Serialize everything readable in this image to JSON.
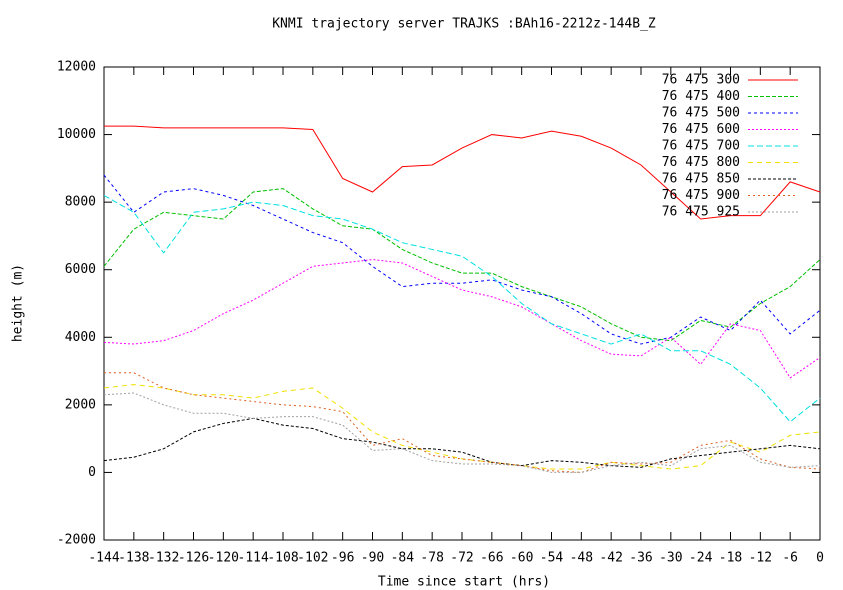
{
  "chart_data": {
    "type": "line",
    "title": "KNMI trajectory server TRAJKS :BAh16-2212z-144B_Z",
    "xlabel": "Time since start (hrs)",
    "ylabel": "height (m)",
    "x": [
      -144,
      -138,
      -132,
      -126,
      -120,
      -114,
      -108,
      -102,
      -96,
      -90,
      -84,
      -78,
      -72,
      -66,
      -60,
      -54,
      -48,
      -42,
      -36,
      -30,
      -24,
      -18,
      -12,
      -6,
      0
    ],
    "xlim": [
      -144,
      0
    ],
    "xticks": [
      -144,
      -138,
      -132,
      -126,
      -120,
      -114,
      -108,
      -102,
      -96,
      -90,
      -84,
      -78,
      -72,
      -66,
      -60,
      -54,
      -48,
      -42,
      -36,
      -30,
      -24,
      -18,
      -12,
      -6,
      0
    ],
    "ylim": [
      -2000,
      12000
    ],
    "yticks": [
      -2000,
      0,
      2000,
      4000,
      6000,
      8000,
      10000,
      12000
    ],
    "grid": false,
    "legend": "top-right",
    "series": [
      {
        "name": "76 475 300",
        "color": "#ff0000",
        "values": [
          10250,
          10250,
          10200,
          10200,
          10200,
          10200,
          10200,
          10150,
          8700,
          8300,
          9050,
          9100,
          9600,
          10000,
          9900,
          10100,
          9950,
          9600,
          9100,
          8300,
          7500,
          7600,
          7600,
          8600,
          8300
        ]
      },
      {
        "name": "76 475 400",
        "color": "#00c000",
        "values": [
          6100,
          7200,
          7700,
          7600,
          7500,
          8300,
          8400,
          7800,
          7300,
          7200,
          6600,
          6200,
          5900,
          5900,
          5500,
          5200,
          4900,
          4400,
          4000,
          3900,
          4500,
          4300,
          5000,
          5500,
          6300
        ]
      },
      {
        "name": "76 475 500",
        "color": "#0000ff",
        "values": [
          8800,
          7700,
          8300,
          8400,
          8200,
          7900,
          7500,
          7100,
          6800,
          6100,
          5500,
          5600,
          5600,
          5700,
          5400,
          5200,
          4700,
          4100,
          3800,
          4000,
          4600,
          4200,
          5100,
          4100,
          4800
        ]
      },
      {
        "name": "76 475 600",
        "color": "#ff00ff",
        "values": [
          3850,
          3800,
          3900,
          4200,
          4700,
          5100,
          5600,
          6100,
          6200,
          6300,
          6200,
          5800,
          5400,
          5200,
          4900,
          4400,
          3900,
          3500,
          3450,
          4000,
          3200,
          4400,
          4200,
          2800,
          3400
        ]
      },
      {
        "name": "76 475 700",
        "color": "#00e0e0",
        "values": [
          8200,
          7700,
          6500,
          7700,
          7800,
          8000,
          7900,
          7600,
          7500,
          7200,
          6800,
          6600,
          6400,
          5800,
          5000,
          4400,
          4100,
          3800,
          4100,
          3600,
          3600,
          3200,
          2500,
          1500,
          2200
        ]
      },
      {
        "name": "76 475 800",
        "color": "#f0e000",
        "values": [
          2500,
          2600,
          2500,
          2300,
          2300,
          2200,
          2400,
          2500,
          1900,
          1200,
          800,
          600,
          400,
          300,
          200,
          100,
          100,
          300,
          200,
          100,
          200,
          900,
          600,
          1100,
          1200
        ]
      },
      {
        "name": "76 475 850",
        "color": "#000000",
        "values": [
          350,
          450,
          700,
          1200,
          1450,
          1600,
          1400,
          1300,
          1000,
          900,
          700,
          700,
          600,
          300,
          200,
          350,
          300,
          200,
          150,
          400,
          500,
          600,
          700,
          800,
          700
        ]
      },
      {
        "name": "76 475 900",
        "color": "#e06020",
        "values": [
          2950,
          2950,
          2500,
          2300,
          2200,
          2100,
          2000,
          1950,
          1800,
          800,
          1000,
          500,
          400,
          300,
          200,
          50,
          0,
          300,
          250,
          300,
          800,
          950,
          400,
          150,
          100
        ]
      },
      {
        "name": "76 475 925",
        "color": "#a0a0a0",
        "values": [
          2300,
          2350,
          2000,
          1750,
          1750,
          1600,
          1650,
          1650,
          1400,
          650,
          700,
          350,
          250,
          250,
          200,
          0,
          0,
          200,
          300,
          200,
          700,
          800,
          300,
          150,
          200
        ]
      }
    ]
  }
}
